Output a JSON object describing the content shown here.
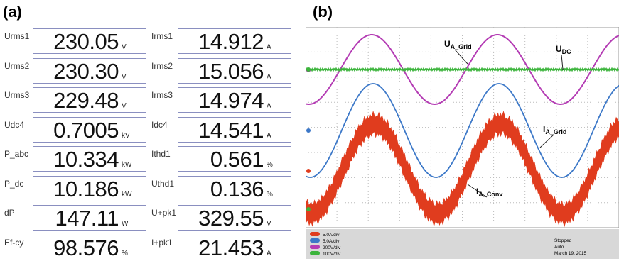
{
  "panels": {
    "a": "(a)",
    "b": "(b)"
  },
  "readouts": {
    "columns": [
      [
        {
          "label": "Urms1",
          "value": "230.05",
          "unit": "V"
        },
        {
          "label": "Urms2",
          "value": "230.30",
          "unit": "V"
        },
        {
          "label": "Urms3",
          "value": "229.48",
          "unit": "V"
        },
        {
          "label": "Udc4",
          "value": "0.7005",
          "unit": "kV"
        },
        {
          "label": "P_abc",
          "value": "10.334",
          "unit": "kW"
        },
        {
          "label": "P_dc",
          "value": "10.186",
          "unit": "kW"
        },
        {
          "label": "dP",
          "value": "147.11",
          "unit": "W"
        },
        {
          "label": "Ef-cy",
          "value": "98.576",
          "unit": "%"
        }
      ],
      [
        {
          "label": "Irms1",
          "value": "14.912",
          "unit": "A"
        },
        {
          "label": "Irms2",
          "value": "15.056",
          "unit": "A"
        },
        {
          "label": "Irms3",
          "value": "14.974",
          "unit": "A"
        },
        {
          "label": "Idc4",
          "value": "14.541",
          "unit": "A"
        },
        {
          "label": "Ithd1",
          "value": "0.561",
          "unit": "%"
        },
        {
          "label": "Uthd1",
          "value": "0.136",
          "unit": "%"
        },
        {
          "label": "U+pk1",
          "value": "329.55",
          "unit": "V"
        },
        {
          "label": "I+pk1",
          "value": "21.453",
          "unit": "A"
        }
      ]
    ]
  },
  "scope": {
    "annotations": [
      {
        "main": "U",
        "sub": "A_Grid"
      },
      {
        "main": "U",
        "sub": "DC"
      },
      {
        "main": "I",
        "sub": "A_Grid"
      },
      {
        "main": "I",
        "sub": "A_Conv"
      }
    ],
    "channels": [
      "5.0A/div",
      "5.0A/div",
      "200V/div",
      "100V/div"
    ],
    "status": [
      "Stopped",
      "Auto",
      "March 19, 2015"
    ]
  }
}
